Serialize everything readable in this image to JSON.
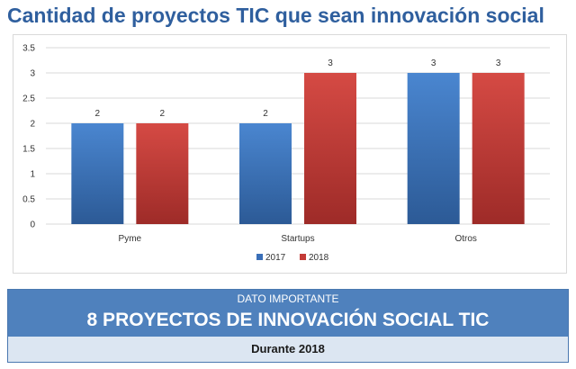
{
  "title": "Cantidad de proyectos TIC que sean innovación social",
  "chart_data": {
    "type": "bar",
    "categories": [
      "Pyme",
      "Startups",
      "Otros"
    ],
    "series": [
      {
        "name": "2017",
        "values": [
          2,
          2,
          3
        ],
        "color": "#3a6fb8"
      },
      {
        "name": "2018",
        "values": [
          2,
          3,
          3
        ],
        "color": "#c43b37"
      }
    ],
    "ylim": [
      0,
      3.5
    ],
    "yticks": [
      "0",
      "0.5",
      "1",
      "1.5",
      "2",
      "2.5",
      "3",
      "3.5"
    ],
    "grid": true,
    "legend": "bottom-center"
  },
  "banner": {
    "label": "DATO IMPORTANTE",
    "headline": "8 PROYECTOS DE INNOVACIÓN SOCIAL TIC",
    "footer": "Durante 2018"
  }
}
